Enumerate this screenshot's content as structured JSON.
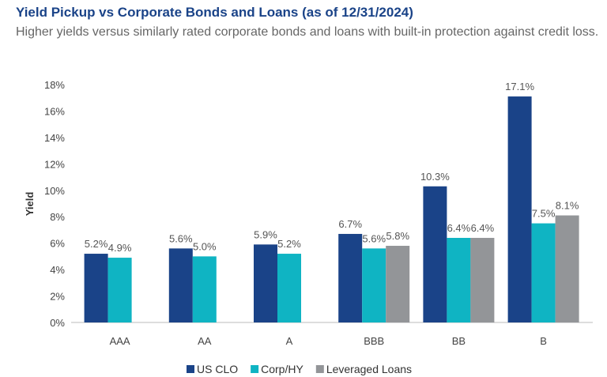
{
  "chart_data": {
    "type": "bar",
    "title": "Yield Pickup vs Corporate Bonds and Loans (as of 12/31/2024)",
    "subtitle": "Higher yields versus similarly rated corporate bonds and loans with built-in protection against credit loss.",
    "xlabel": "",
    "ylabel": "Yield",
    "ylim": [
      0,
      18
    ],
    "yticks": [
      0,
      2,
      4,
      6,
      8,
      10,
      12,
      14,
      16,
      18
    ],
    "ytick_labels": [
      "0%",
      "2%",
      "4%",
      "6%",
      "8%",
      "10%",
      "12%",
      "14%",
      "16%",
      "18%"
    ],
    "categories": [
      "AAA",
      "AA",
      "A",
      "BBB",
      "BB",
      "B"
    ],
    "series": [
      {
        "name": "US CLO",
        "color": "#1a4388",
        "values": [
          5.2,
          5.6,
          5.9,
          6.7,
          10.3,
          17.1
        ],
        "labels": [
          "5.2%",
          "5.6%",
          "5.9%",
          "6.7%",
          "10.3%",
          "17.1%"
        ]
      },
      {
        "name": "Corp/HY",
        "color": "#0fb4c3",
        "values": [
          4.9,
          5.0,
          5.2,
          5.6,
          6.4,
          7.5
        ],
        "labels": [
          "4.9%",
          "5.0%",
          "5.2%",
          "5.6%",
          "6.4%",
          "7.5%"
        ]
      },
      {
        "name": "Leveraged Loans",
        "color": "#939598",
        "values": [
          null,
          null,
          null,
          5.8,
          6.4,
          8.1
        ],
        "labels": [
          null,
          null,
          null,
          "5.8%",
          "6.4%",
          "8.1%"
        ]
      }
    ],
    "grid": false,
    "legend": "bottom"
  }
}
